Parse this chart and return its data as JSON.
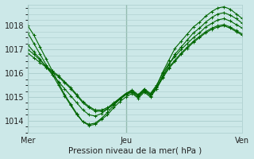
{
  "xlabel": "Pression niveau de la mer( hPa )",
  "bg_color": "#cce8e8",
  "grid_color": "#aacccc",
  "line_color": "#006600",
  "marker": "+",
  "ylim": [
    1013.5,
    1018.9
  ],
  "xlim": [
    0,
    35
  ],
  "day_labels": [
    "Mer",
    "Jeu",
    "Ven"
  ],
  "day_positions": [
    0,
    16,
    35
  ],
  "vline_positions": [
    0,
    16
  ],
  "lines": [
    [
      1018.0,
      1017.6,
      1017.1,
      1016.6,
      1016.1,
      1015.6,
      1015.1,
      1014.7,
      1014.3,
      1013.95,
      1013.85,
      1013.9,
      1014.1,
      1014.35,
      1014.65,
      1014.9,
      1015.1,
      1015.25,
      1015.05,
      1015.3,
      1015.1,
      1015.45,
      1016.05,
      1016.55,
      1017.05,
      1017.35,
      1017.65,
      1017.95,
      1018.15,
      1018.4,
      1018.6,
      1018.75,
      1018.8,
      1018.7,
      1018.5,
      1018.3
    ],
    [
      1017.7,
      1017.25,
      1016.8,
      1016.35,
      1015.95,
      1015.5,
      1015.05,
      1014.65,
      1014.25,
      1013.95,
      1013.8,
      1013.85,
      1014.05,
      1014.25,
      1014.55,
      1014.8,
      1015.0,
      1015.15,
      1014.95,
      1015.2,
      1015.0,
      1015.35,
      1015.9,
      1016.35,
      1016.8,
      1017.1,
      1017.4,
      1017.7,
      1017.9,
      1018.15,
      1018.35,
      1018.5,
      1018.55,
      1018.45,
      1018.3,
      1018.1
    ],
    [
      1017.2,
      1016.9,
      1016.6,
      1016.25,
      1015.95,
      1015.65,
      1015.35,
      1015.05,
      1014.75,
      1014.45,
      1014.25,
      1014.2,
      1014.3,
      1014.5,
      1014.7,
      1014.95,
      1015.15,
      1015.3,
      1015.1,
      1015.35,
      1015.15,
      1015.5,
      1016.0,
      1016.4,
      1016.7,
      1017.0,
      1017.25,
      1017.5,
      1017.7,
      1017.95,
      1018.1,
      1018.25,
      1018.3,
      1018.2,
      1018.05,
      1017.9
    ],
    [
      1017.0,
      1016.8,
      1016.55,
      1016.3,
      1016.1,
      1015.9,
      1015.65,
      1015.4,
      1015.1,
      1014.8,
      1014.6,
      1014.45,
      1014.45,
      1014.55,
      1014.75,
      1014.95,
      1015.15,
      1015.25,
      1015.05,
      1015.3,
      1015.1,
      1015.4,
      1015.85,
      1016.25,
      1016.55,
      1016.85,
      1017.1,
      1017.35,
      1017.55,
      1017.75,
      1017.9,
      1018.0,
      1018.05,
      1017.95,
      1017.8,
      1017.65
    ],
    [
      1016.85,
      1016.65,
      1016.45,
      1016.25,
      1016.05,
      1015.85,
      1015.6,
      1015.35,
      1015.05,
      1014.75,
      1014.55,
      1014.4,
      1014.4,
      1014.5,
      1014.7,
      1014.9,
      1015.1,
      1015.2,
      1015.0,
      1015.25,
      1015.05,
      1015.35,
      1015.8,
      1016.2,
      1016.5,
      1016.8,
      1017.05,
      1017.3,
      1017.5,
      1017.7,
      1017.85,
      1017.95,
      1018.0,
      1017.9,
      1017.75,
      1017.6
    ]
  ]
}
